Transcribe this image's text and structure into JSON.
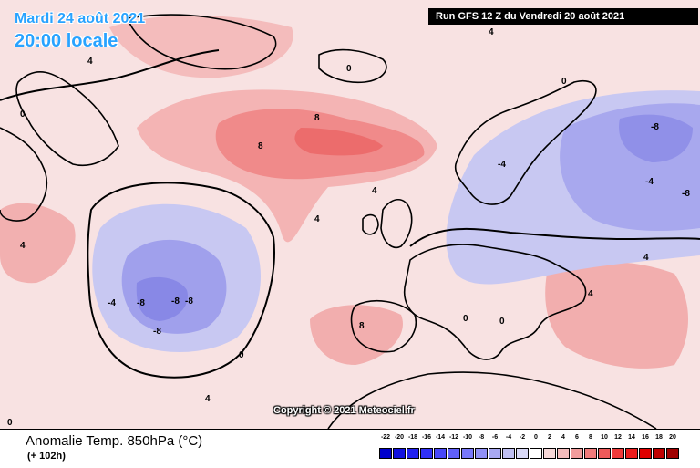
{
  "header": {
    "date": "Mardi 24 août 2021",
    "time": "20:00 locale",
    "run": "Run GFS 12 Z du Vendredi 20 août 2021"
  },
  "copyright": "Copyright © 2021 Meteociel.fr",
  "footer": {
    "title": "Anomalie Temp. 850hPa (°C)",
    "subtitle": "(+ 102h)"
  },
  "legend": {
    "values": [
      "-22",
      "-20",
      "-18",
      "-16",
      "-14",
      "-12",
      "-10",
      "-8",
      "-6",
      "-4",
      "-2",
      "0",
      "2",
      "4",
      "6",
      "8",
      "10",
      "12",
      "14",
      "16",
      "18",
      "20"
    ],
    "colors": [
      "#0000cc",
      "#1010e0",
      "#2020ee",
      "#3030f6",
      "#4848f8",
      "#6060fa",
      "#7878fa",
      "#9090f6",
      "#a8a8f2",
      "#c0c0f2",
      "#d8d8f6",
      "#ffffff",
      "#f6d8d8",
      "#f4bcbc",
      "#f29c9c",
      "#f07c7c",
      "#ee5a5a",
      "#ee3a3a",
      "#ea1c1c",
      "#e00000",
      "#c00000",
      "#a00000"
    ]
  },
  "contour_labels": {
    "neg8": "-8",
    "neg4": "-4",
    "zero": "0",
    "pos4": "4",
    "pos8": "8"
  }
}
